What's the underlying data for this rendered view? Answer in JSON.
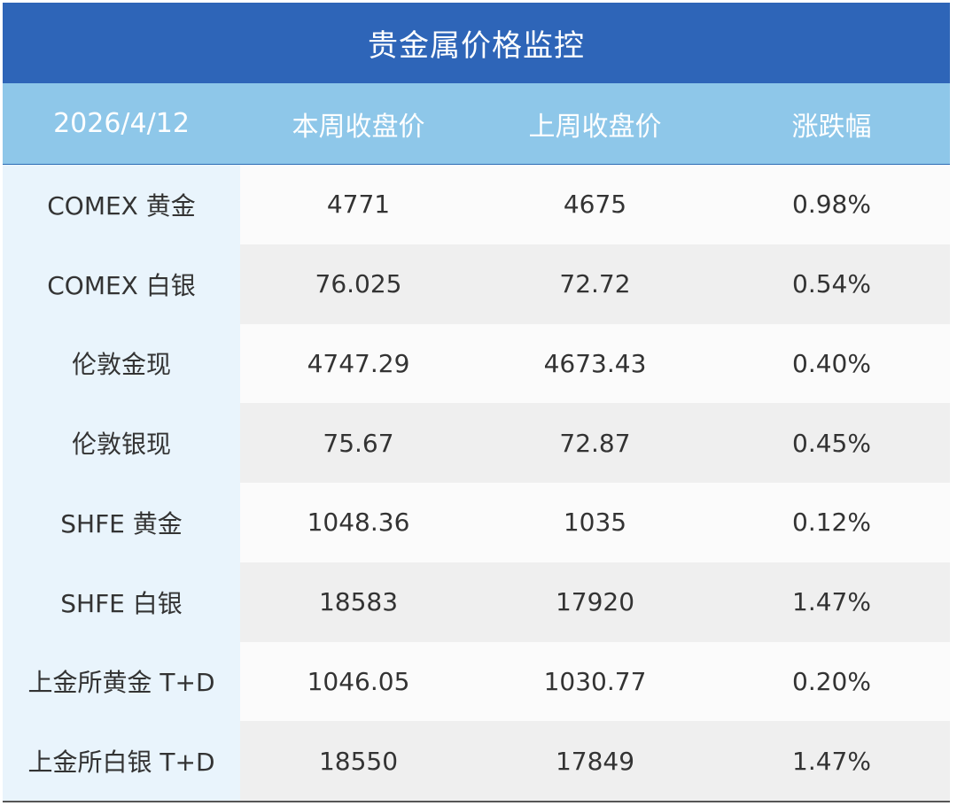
{
  "title": "贵金属价格监控",
  "colors": {
    "title_bg": "#2e65b8",
    "header_bg": "#8ec7e9",
    "first_col_bg": "#e9f4fc",
    "row_light": "#fbfbfb",
    "row_dark": "#efefef",
    "text": "#333333"
  },
  "chart_data": {
    "type": "table",
    "title": "贵金属价格监控",
    "columns": [
      "2026/4/12",
      "本周收盘价",
      "上周收盘价",
      "涨跌幅"
    ],
    "rows": [
      [
        "COMEX 黄金",
        "4771",
        "4675",
        "0.98%"
      ],
      [
        "COMEX 白银",
        "76.025",
        "72.72",
        "0.54%"
      ],
      [
        "伦敦金现",
        "4747.29",
        "4673.43",
        "0.40%"
      ],
      [
        "伦敦银现",
        "75.67",
        "72.87",
        "0.45%"
      ],
      [
        "SHFE 黄金",
        "1048.36",
        "1035",
        "0.12%"
      ],
      [
        "SHFE 白银",
        "18583",
        "17920",
        "1.47%"
      ],
      [
        "上金所黄金 T+D",
        "1046.05",
        "1030.77",
        "0.20%"
      ],
      [
        "上金所白银 T+D",
        "18550",
        "17849",
        "1.47%"
      ]
    ]
  }
}
